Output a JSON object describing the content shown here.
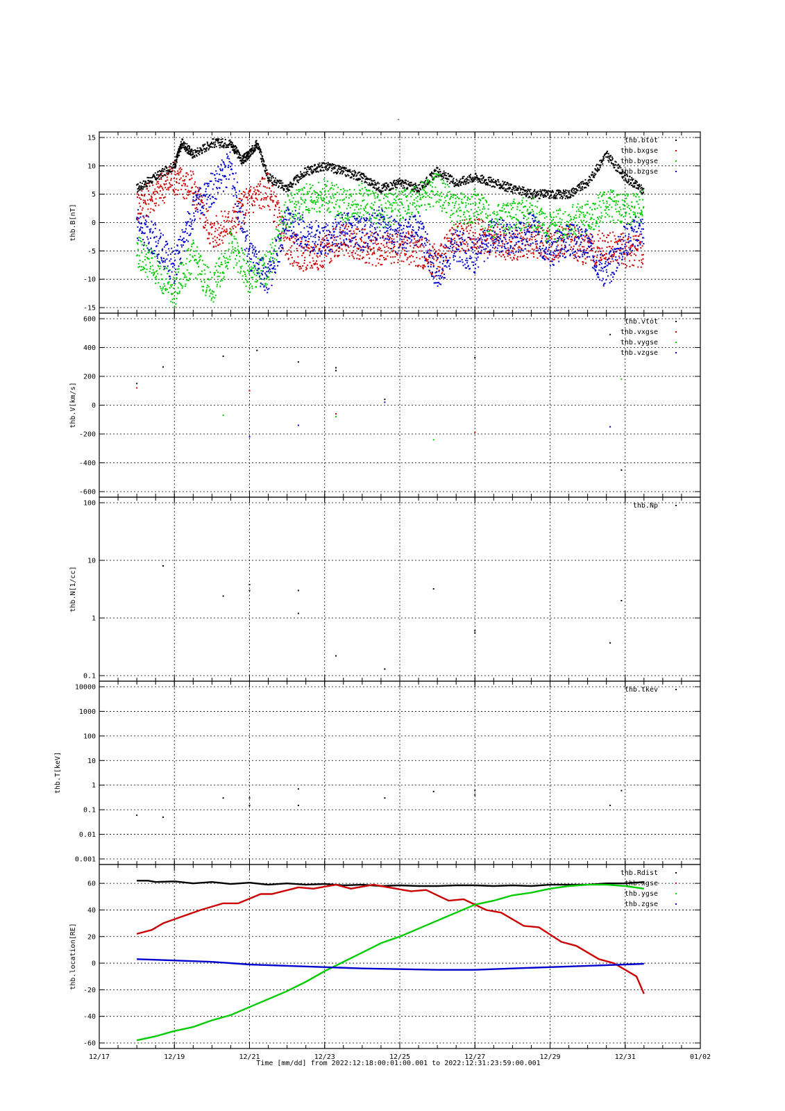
{
  "top_mark": "-",
  "time_label": "Time [mm/dd]  from 2022:12:18:00:01:00.001  to  2022:12:31:23:59:00.001",
  "chart_data": [
    {
      "type": "scatter",
      "ylabel": "thb.B[nT]",
      "ylim": [
        -15,
        15
      ],
      "yticks": [
        15,
        10,
        5,
        0,
        -5,
        -10,
        -15
      ],
      "legend_position": "top-right",
      "legend": [
        "thb.btot",
        "thb.bxgse",
        "thb.bygse",
        "thb.bzgse"
      ],
      "colors": [
        "#000000",
        "#cc0000",
        "#00cc00",
        "#0000cc"
      ],
      "series": [
        {
          "name": "thb.btot",
          "x": [
            18.0,
            18.5,
            19.0,
            19.2,
            19.5,
            20.0,
            20.5,
            20.8,
            21.0,
            21.2,
            21.5,
            22.0,
            22.5,
            23.0,
            23.5,
            24.0,
            24.5,
            25.0,
            25.5,
            26.0,
            26.5,
            27.0,
            27.5,
            28.0,
            28.5,
            29.0,
            29.5,
            30.0,
            30.5,
            31.0,
            31.5
          ],
          "values": [
            6,
            8,
            10,
            14,
            12,
            14,
            14,
            11,
            12,
            14,
            8,
            6,
            9,
            10,
            9,
            8,
            6,
            7,
            6,
            9,
            7,
            8,
            7,
            6,
            5,
            5,
            5,
            7,
            12,
            8,
            5.5
          ]
        },
        {
          "name": "thb.bxgse",
          "x": [
            18.0,
            18.5,
            19.0,
            19.5,
            20.0,
            20.5,
            21.0,
            21.5,
            22.0,
            22.5,
            23.0,
            23.5,
            24.0,
            24.5,
            25.0,
            25.5,
            26.0,
            26.5,
            27.0,
            27.5,
            28.0,
            28.5,
            29.0,
            29.5,
            30.0,
            30.5,
            31.0,
            31.5
          ],
          "values": [
            3,
            5,
            8,
            6,
            -2,
            0,
            4,
            6,
            -4,
            -6,
            -5,
            -3,
            -4,
            -5,
            -4,
            -5,
            -7,
            -3,
            -2,
            -3,
            -4,
            -3,
            -4,
            -3,
            -5,
            -4,
            -5,
            -5
          ]
        },
        {
          "name": "thb.bygse",
          "x": [
            18.0,
            18.5,
            19.0,
            19.5,
            20.0,
            20.5,
            21.0,
            21.5,
            22.0,
            22.5,
            23.0,
            23.5,
            24.0,
            24.5,
            25.0,
            25.5,
            26.0,
            26.5,
            27.0,
            27.5,
            28.0,
            28.5,
            29.0,
            29.5,
            30.0,
            30.5,
            31.0,
            31.5
          ],
          "values": [
            -5,
            -8,
            -12,
            -6,
            -12,
            -4,
            -10,
            -8,
            2,
            4,
            5,
            3,
            4,
            2,
            3,
            4,
            6,
            2,
            3,
            0,
            1,
            2,
            -1,
            0,
            1,
            3,
            2,
            3
          ]
        },
        {
          "name": "thb.bzgse",
          "x": [
            18.0,
            18.5,
            19.0,
            19.5,
            20.0,
            20.5,
            21.0,
            21.5,
            22.0,
            22.5,
            23.0,
            23.5,
            24.0,
            24.5,
            25.0,
            25.5,
            26.0,
            26.5,
            27.0,
            27.5,
            28.0,
            28.5,
            29.0,
            29.5,
            30.0,
            30.5,
            31.0,
            31.5
          ],
          "values": [
            0,
            -3,
            -8,
            2,
            6,
            10,
            -6,
            -10,
            0,
            -2,
            -3,
            -1,
            -2,
            0,
            -3,
            -1,
            -9,
            -4,
            -6,
            -2,
            -3,
            -1,
            -5,
            -3,
            -4,
            -9,
            -3,
            -1
          ]
        }
      ]
    },
    {
      "type": "scatter",
      "ylabel": "thb.V[km/s]",
      "ylim": [
        -600,
        600
      ],
      "yticks": [
        600,
        400,
        200,
        0,
        -200,
        -400,
        -600
      ],
      "legend_position": "top-right",
      "legend": [
        "thb.vtot",
        "thb.vxgse",
        "thb.vygse",
        "thb.vzgse"
      ],
      "colors": [
        "#000000",
        "#cc0000",
        "#00cc00",
        "#0000cc"
      ],
      "series": [
        {
          "name": "thb.vtot",
          "x": [
            18.0,
            18.7,
            20.3,
            21.2,
            22.3,
            23.3,
            23.3,
            24.6,
            27.0,
            30.6,
            30.9
          ],
          "values": [
            150,
            265,
            340,
            380,
            300,
            260,
            240,
            40,
            330,
            490,
            -450
          ]
        },
        {
          "name": "thb.vxgse",
          "x": [
            18.0,
            21.0,
            23.3,
            27.0
          ],
          "values": [
            120,
            100,
            -60,
            -190
          ]
        },
        {
          "name": "thb.vygse",
          "x": [
            20.3,
            23.3,
            25.9,
            30.9
          ],
          "values": [
            -70,
            -80,
            -240,
            180
          ]
        },
        {
          "name": "thb.vzgse",
          "x": [
            21.0,
            22.3,
            24.6,
            30.6
          ],
          "values": [
            -220,
            -140,
            20,
            -150
          ]
        }
      ]
    },
    {
      "type": "scatter",
      "ylabel": "thb.N[1/cc]",
      "yscale": "log",
      "ylim": [
        0.1,
        100
      ],
      "yticks": [
        100,
        10,
        1,
        0.1
      ],
      "legend_position": "top-right",
      "legend": [
        "thb.Np"
      ],
      "colors": [
        "#000000"
      ],
      "series": [
        {
          "name": "thb.Np",
          "x": [
            18.7,
            20.3,
            21.0,
            21.0,
            22.3,
            22.3,
            23.3,
            24.6,
            25.9,
            27.0,
            27.0,
            30.6,
            30.9
          ],
          "values": [
            8,
            2.4,
            3.8,
            3.0,
            3.0,
            1.2,
            0.22,
            0.13,
            3.2,
            0.55,
            0.6,
            0.37,
            2.0
          ]
        }
      ]
    },
    {
      "type": "scatter",
      "ylabel": "thb.T[keV]",
      "yscale": "log",
      "ylim": [
        0.001,
        10000
      ],
      "yticks": [
        10000,
        1000,
        100,
        10,
        1,
        0.1,
        0.01,
        0.001
      ],
      "legend_position": "top-right",
      "legend": [
        "thb.tkev"
      ],
      "colors": [
        "#000000"
      ],
      "series": [
        {
          "name": "thb.tkev",
          "x": [
            18.0,
            18.7,
            20.3,
            21.0,
            21.0,
            22.3,
            22.3,
            24.6,
            25.9,
            27.0,
            27.0,
            30.6,
            30.9
          ],
          "values": [
            0.06,
            0.05,
            0.3,
            0.3,
            0.15,
            0.7,
            0.15,
            0.3,
            0.55,
            0.6,
            0.4,
            0.15,
            0.6
          ]
        }
      ]
    },
    {
      "type": "line",
      "ylabel": "thb.location[RE]",
      "ylim": [
        -60,
        70
      ],
      "yticks": [
        60,
        40,
        20,
        0,
        -20,
        -40,
        -60
      ],
      "legend_position": "top-right",
      "legend": [
        "thb.Rdist",
        "thb.xgse",
        "thb.ygse",
        "thb.zgse"
      ],
      "colors": [
        "#000000",
        "#cc0000",
        "#00cc00",
        "#0000cc"
      ],
      "series": [
        {
          "name": "thb.Rdist",
          "x": [
            18.0,
            18.3,
            18.5,
            19.0,
            19.5,
            20.0,
            20.5,
            21.0,
            21.5,
            22.0,
            22.5,
            23.0,
            23.5,
            24.0,
            24.5,
            25.0,
            25.5,
            26.0,
            26.5,
            27.0,
            27.5,
            28.0,
            28.5,
            29.0,
            29.5,
            30.0,
            30.5,
            31.0,
            31.5
          ],
          "values": [
            62,
            62,
            61,
            61.5,
            60,
            61,
            59.5,
            60.5,
            59,
            60,
            59,
            59.5,
            58.5,
            59,
            58,
            58.5,
            58,
            58,
            58.5,
            58.5,
            58,
            58.5,
            58,
            59,
            59,
            59,
            60,
            60,
            61
          ]
        },
        {
          "name": "thb.xgse",
          "x": [
            18.0,
            18.4,
            18.7,
            19.3,
            19.7,
            20.3,
            20.7,
            21.3,
            21.6,
            22.3,
            22.7,
            23.3,
            23.7,
            24.3,
            24.7,
            25.3,
            25.7,
            26.3,
            26.7,
            27.3,
            27.7,
            28.3,
            28.7,
            29.3,
            29.7,
            30.3,
            30.7,
            31.3,
            31.5
          ],
          "values": [
            22,
            25,
            30,
            36,
            40,
            45,
            45,
            52,
            52,
            57,
            56,
            59,
            56,
            59,
            57,
            54,
            55,
            47,
            48,
            40,
            38,
            28,
            27,
            16,
            13,
            3,
            0,
            -10,
            -23
          ]
        },
        {
          "name": "thb.ygse",
          "x": [
            18.0,
            18.5,
            19.0,
            19.5,
            20.0,
            20.5,
            21.0,
            21.5,
            22.0,
            22.5,
            23.0,
            23.5,
            24.0,
            24.5,
            25.0,
            25.5,
            26.0,
            26.5,
            27.0,
            27.5,
            28.0,
            28.5,
            29.0,
            29.5,
            30.0,
            30.5,
            31.0,
            31.5
          ],
          "values": [
            -58,
            -55,
            -51,
            -48,
            -43,
            -39,
            -33,
            -27,
            -21,
            -14,
            -6,
            1,
            8,
            15,
            20,
            26,
            32,
            38,
            44,
            47,
            51,
            53,
            56,
            58,
            59,
            59,
            58,
            56
          ]
        },
        {
          "name": "thb.zgse",
          "x": [
            18.0,
            19.0,
            20.0,
            21.0,
            22.0,
            23.0,
            24.0,
            25.0,
            26.0,
            27.0,
            28.0,
            29.0,
            30.0,
            31.0,
            31.5
          ],
          "values": [
            3,
            2,
            1,
            -1,
            -2,
            -3,
            -4,
            -4.5,
            -5,
            -5,
            -4,
            -3,
            -2,
            -1,
            -0.5
          ]
        }
      ]
    }
  ],
  "xlim": [
    17,
    33
  ],
  "xtick_positions": [
    17,
    19,
    21,
    23,
    25,
    27,
    29,
    31,
    33
  ],
  "xtick_labels": [
    "12/17",
    "12/19",
    "12/21",
    "12/23",
    "12/25",
    "12/27",
    "12/29",
    "12/31",
    "01/02"
  ]
}
